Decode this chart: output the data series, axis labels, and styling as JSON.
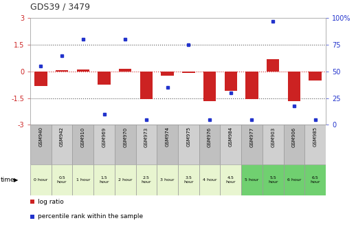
{
  "title": "GDS39 / 3479",
  "samples": [
    "GSM940",
    "GSM942",
    "GSM910",
    "GSM969",
    "GSM970",
    "GSM973",
    "GSM974",
    "GSM975",
    "GSM976",
    "GSM984",
    "GSM977",
    "GSM903",
    "GSM906",
    "GSM985"
  ],
  "time_labels": [
    "0 hour",
    "0.5\nhour",
    "1 hour",
    "1.5\nhour",
    "2 hour",
    "2.5\nhour",
    "3 hour",
    "3.5\nhour",
    "4 hour",
    "4.5\nhour",
    "5 hour",
    "5.5\nhour",
    "6 hour",
    "6.5\nhour"
  ],
  "time_colors": [
    "#e8f5d0",
    "#e8f5d0",
    "#e8f5d0",
    "#e8f5d0",
    "#e8f5d0",
    "#e8f5d0",
    "#e8f5d0",
    "#e8f5d0",
    "#e8f5d0",
    "#e8f5d0",
    "#70d070",
    "#70d070",
    "#70d070",
    "#70d070"
  ],
  "sample_colors": [
    "#c0c0c0",
    "#d0d0d0",
    "#c0c0c0",
    "#d0d0d0",
    "#c0c0c0",
    "#d0d0d0",
    "#c0c0c0",
    "#d0d0d0",
    "#c0c0c0",
    "#d0d0d0",
    "#c0c0c0",
    "#d0d0d0",
    "#c0c0c0",
    "#d0d0d0"
  ],
  "log_ratio": [
    -0.8,
    0.07,
    0.1,
    -0.75,
    0.15,
    -1.55,
    -0.25,
    -0.07,
    -1.65,
    -1.1,
    -1.55,
    0.7,
    -1.65,
    -0.5
  ],
  "percentile": [
    55,
    65,
    80,
    10,
    80,
    5,
    35,
    75,
    5,
    30,
    5,
    97,
    18,
    5
  ],
  "ylim_left": [
    -3,
    3
  ],
  "ylim_right": [
    0,
    100
  ],
  "yticks_left": [
    -3,
    -1.5,
    0,
    1.5,
    3
  ],
  "yticks_right": [
    0,
    25,
    50,
    75,
    100
  ],
  "bar_color": "#cc2222",
  "dot_color": "#2233cc",
  "hline_zero_color": "#cc2222",
  "hline_color": "#555555"
}
